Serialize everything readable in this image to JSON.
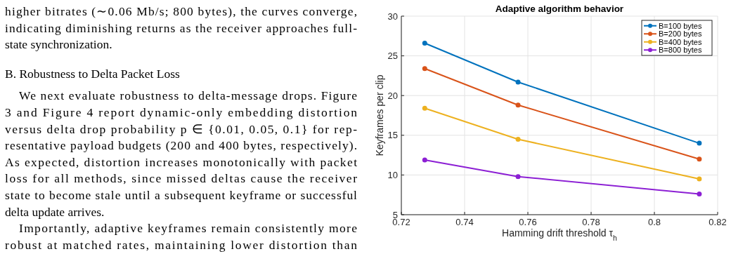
{
  "chart_data": {
    "type": "line",
    "title": "Adaptive algorithm behavior",
    "xlabel": "Hamming drift threshold τ$_{h}$",
    "ylabel": "Keyframes per clip",
    "x": [
      0.7274,
      0.7569,
      0.8142
    ],
    "series": [
      {
        "name": "B=100 bytes",
        "color": "#0072bd",
        "values": [
          26.6,
          21.7,
          14.0
        ]
      },
      {
        "name": "B=200 bytes",
        "color": "#d95319",
        "values": [
          23.4,
          18.8,
          12.0
        ]
      },
      {
        "name": "B=400 bytes",
        "color": "#edb120",
        "values": [
          18.4,
          14.5,
          9.5
        ]
      },
      {
        "name": "B=800 bytes",
        "color": "#8c1fd4",
        "values": [
          11.9,
          9.8,
          7.6
        ]
      }
    ],
    "xlim": [
      0.72,
      0.82
    ],
    "xticks": [
      0.72,
      0.74,
      0.76,
      0.78,
      0.8,
      0.82
    ],
    "ylim": [
      5,
      30
    ],
    "yticks": [
      5,
      10,
      15,
      20,
      25,
      30
    ],
    "grid": true,
    "legend": "top right",
    "marker": "circle",
    "line_style": "solid",
    "annotations": [
      "higher bitrates (∼0.06 Mb/s; 800 bytes), the curves converge,",
      "indicating diminishing returns as the receiver approaches full-",
      "state synchronization.",
      "B. Robustness to Delta Packet Loss",
      "We next evaluate robustness to delta-message drops. Figure",
      "3 and Figure 4 report dynamic-only embedding distortion",
      "versus delta drop probability p ∈ {0.01, 0.05, 0.1} for rep-",
      "resentative payload budgets (200 and 400 bytes, respectively).",
      "As expected, distortion increases monotonically with packet",
      "loss for all methods, since missed deltas cause the receiver",
      "state to become stale until a subsequent keyframe or successful",
      "delta update arrives.",
      "Importantly, adaptive keyframes remain consistently more",
      "robust at matched rates, maintaining lower distortion than"
    ]
  }
}
